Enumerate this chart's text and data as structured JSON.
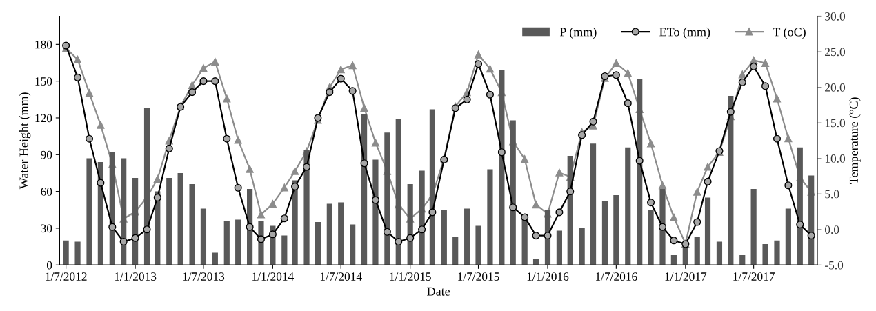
{
  "chart_data": {
    "type": "bar",
    "xlabel": "Date",
    "ylabel": "Water Height (mm)",
    "y2label": "Temperature (°C)",
    "x": [
      "2012-07",
      "2012-08",
      "2012-09",
      "2012-10",
      "2012-11",
      "2012-12",
      "2013-01",
      "2013-02",
      "2013-03",
      "2013-04",
      "2013-05",
      "2013-06",
      "2013-07",
      "2013-08",
      "2013-09",
      "2013-10",
      "2013-11",
      "2013-12",
      "2014-01",
      "2014-02",
      "2014-03",
      "2014-04",
      "2014-05",
      "2014-06",
      "2014-07",
      "2014-08",
      "2014-09",
      "2014-10",
      "2014-11",
      "2014-12",
      "2015-01",
      "2015-02",
      "2015-03",
      "2015-04",
      "2015-05",
      "2015-06",
      "2015-07",
      "2015-08",
      "2015-09",
      "2015-10",
      "2015-11",
      "2015-12",
      "2016-01",
      "2016-02",
      "2016-03",
      "2016-04",
      "2016-05",
      "2016-06",
      "2016-07",
      "2016-08",
      "2016-09",
      "2016-10",
      "2016-11",
      "2016-12",
      "2017-01",
      "2017-02",
      "2017-03",
      "2017-04",
      "2017-05",
      "2017-06",
      "2017-07",
      "2017-08",
      "2017-09",
      "2017-10",
      "2017-11",
      "2017-12"
    ],
    "series": [
      {
        "name": "P (mm)",
        "color": "#595959",
        "values": [
          20,
          19,
          87,
          84,
          92,
          87,
          71,
          128,
          60,
          71,
          75,
          66,
          46,
          10,
          36,
          37,
          62,
          36,
          32,
          24,
          69,
          94,
          35,
          50,
          51,
          33,
          123,
          86,
          108,
          119,
          66,
          77,
          127,
          45,
          23,
          46,
          32,
          78,
          159,
          118,
          38,
          5,
          45,
          28,
          89,
          30,
          99,
          52,
          57,
          96,
          152,
          45,
          62,
          8,
          17,
          23,
          55,
          19,
          138,
          8,
          62,
          17,
          20,
          46,
          96,
          73
        ]
      },
      {
        "name": "ETo (mm)",
        "type": "line",
        "color": "#000000",
        "marker": "circle",
        "values": [
          179,
          153,
          103,
          67,
          31,
          19,
          22,
          29,
          55,
          95,
          129,
          141,
          150,
          150,
          103,
          63,
          31,
          21,
          25,
          38,
          64,
          80,
          120,
          141,
          152,
          142,
          83,
          53,
          27,
          19,
          22,
          29,
          43,
          86,
          128,
          135,
          164,
          139,
          92,
          47,
          39,
          24,
          24,
          43,
          60,
          106,
          117,
          154,
          155,
          132,
          85,
          51,
          31,
          20,
          17,
          35,
          68,
          93,
          125,
          149,
          162,
          146,
          103,
          65,
          33,
          24
        ]
      },
      {
        "name": "T (oC)",
        "type": "line",
        "axis": "y2",
        "color": "#8c8c8c",
        "marker": "triangle",
        "values": [
          25.5,
          23.9,
          19.2,
          14.7,
          9.2,
          1.5,
          2.5,
          4.5,
          7.1,
          12.5,
          17.3,
          20.3,
          22.7,
          23.6,
          18.4,
          12.6,
          8.5,
          2.1,
          3.6,
          5.9,
          8.2,
          11.0,
          15.4,
          20.0,
          22.5,
          23.1,
          17.1,
          12.2,
          8.2,
          3.5,
          1.5,
          2.9,
          4.8,
          10.0,
          17.3,
          19.3,
          24.6,
          22.6,
          19.3,
          12.4,
          9.9,
          3.5,
          2.2,
          8.0,
          7.4,
          13.7,
          14.6,
          21.3,
          23.4,
          22.0,
          16.9,
          12.1,
          6.2,
          1.7,
          -2.0,
          5.3,
          8.8,
          10.9,
          15.9,
          21.8,
          23.8,
          23.4,
          18.4,
          12.8,
          7.3,
          5.3
        ]
      }
    ],
    "xlim": [
      "2012-06-14",
      "2017-12-17"
    ],
    "xticks": [
      {
        "value": "2012-07-01",
        "label": "1/7/2012"
      },
      {
        "value": "2013-01-01",
        "label": "1/1/2013"
      },
      {
        "value": "2013-07-01",
        "label": "1/7/2013"
      },
      {
        "value": "2014-01-01",
        "label": "1/1/2014"
      },
      {
        "value": "2014-07-01",
        "label": "1/7/2014"
      },
      {
        "value": "2015-01-01",
        "label": "1/1/2015"
      },
      {
        "value": "2015-07-01",
        "label": "1/7/2015"
      },
      {
        "value": "2016-01-01",
        "label": "1/1/2016"
      },
      {
        "value": "2016-07-01",
        "label": "1/7/2016"
      },
      {
        "value": "2017-01-01",
        "label": "1/1/2017"
      },
      {
        "value": "2017-07-01",
        "label": "1/7/2017"
      }
    ],
    "ylim": [
      0,
      203
    ],
    "yticks": [
      0,
      30,
      60,
      90,
      120,
      150,
      180
    ],
    "y2lim": [
      -5,
      30
    ],
    "y2ticks": [
      {
        "value": -5,
        "label": "-5.0"
      },
      {
        "value": 0,
        "label": "0.0"
      },
      {
        "value": 5,
        "label": "5.0"
      },
      {
        "value": 10,
        "label": "10.0"
      },
      {
        "value": 15,
        "label": "15.0"
      },
      {
        "value": 20,
        "label": "20.0"
      },
      {
        "value": 25,
        "label": "25.0"
      },
      {
        "value": 30,
        "label": "30.0"
      }
    ],
    "legend": "top right",
    "grid": false,
    "line_style": "solid"
  }
}
